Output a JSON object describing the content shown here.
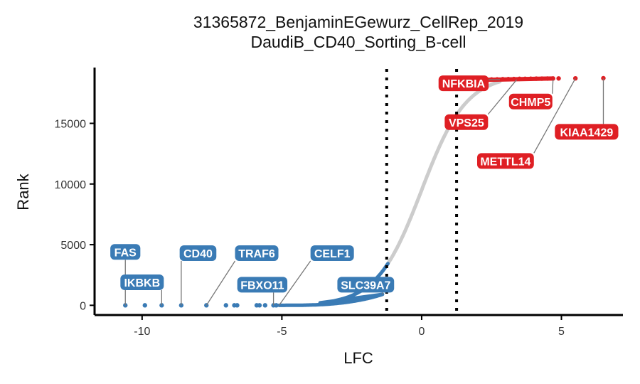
{
  "chart_data": {
    "type": "scatter",
    "title": [
      "31365872_BenjaminEGewurz_CellRep_2019",
      "DaudiB_CD40_Sorting_B-cell"
    ],
    "xlabel": "LFC",
    "ylabel": "Rank",
    "xlim": [
      -11.7,
      7.2
    ],
    "ylim": [
      -800,
      19600
    ],
    "x_ticks": [
      -10,
      -5,
      0,
      5
    ],
    "y_ticks": [
      0,
      5000,
      10000,
      15000
    ],
    "vlines": [
      -1.25,
      1.25
    ],
    "grid": false,
    "colors": {
      "negative": "#3a7bb5",
      "neutral": "#cccccc",
      "positive": "#df1f24"
    },
    "series": [
      {
        "points": [
          {
            "x": -10.6,
            "y": 0
          },
          {
            "x": -9.9,
            "y": 0
          },
          {
            "x": -9.3,
            "y": 0
          },
          {
            "x": -8.6,
            "y": 0
          },
          {
            "x": -7.7,
            "y": 0
          },
          {
            "x": -7.0,
            "y": 0
          },
          {
            "x": -6.7,
            "y": 0
          },
          {
            "x": -6.6,
            "y": 0
          },
          {
            "x": -5.9,
            "y": 0
          },
          {
            "x": -5.8,
            "y": 0
          },
          {
            "x": -5.6,
            "y": 0
          },
          {
            "x": -5.3,
            "y": 0
          },
          {
            "x": -5.2,
            "y": 0
          }
        ]
      },
      {
        "points": [
          {
            "x": 2.1,
            "y": 18600
          },
          {
            "x": 2.3,
            "y": 18610
          },
          {
            "x": 2.5,
            "y": 18620
          },
          {
            "x": 2.7,
            "y": 18630
          },
          {
            "x": 2.9,
            "y": 18640
          },
          {
            "x": 3.1,
            "y": 18650
          },
          {
            "x": 3.3,
            "y": 18660
          },
          {
            "x": 3.5,
            "y": 18670
          },
          {
            "x": 3.7,
            "y": 18675
          },
          {
            "x": 3.9,
            "y": 18680
          },
          {
            "x": 4.1,
            "y": 18685
          },
          {
            "x": 4.3,
            "y": 18690
          },
          {
            "x": 4.5,
            "y": 18695
          },
          {
            "x": 4.7,
            "y": 18700
          },
          {
            "x": 4.9,
            "y": 18705
          },
          {
            "x": 5.5,
            "y": 18710
          },
          {
            "x": 6.5,
            "y": 18720
          }
        ]
      }
    ],
    "annotations": [
      {
        "label": "FAS",
        "x": -10.6,
        "y": 0,
        "label_x": -10.6,
        "label_y": 4400,
        "group": "negative"
      },
      {
        "label": "IKBKB",
        "x": -9.3,
        "y": 0,
        "label_x": -10.0,
        "label_y": 1900,
        "group": "negative"
      },
      {
        "label": "CD40",
        "x": -8.6,
        "y": 0,
        "label_x": -8.0,
        "label_y": 4300,
        "group": "negative"
      },
      {
        "label": "TRAF6",
        "x": -7.7,
        "y": 0,
        "label_x": -5.9,
        "label_y": 4300,
        "group": "negative"
      },
      {
        "label": "FBXO11",
        "x": -5.3,
        "y": 0,
        "label_x": -5.7,
        "label_y": 1700,
        "group": "negative"
      },
      {
        "label": "CELF1",
        "x": -5.1,
        "y": 0,
        "label_x": -3.2,
        "label_y": 4300,
        "group": "negative"
      },
      {
        "label": "SLC39A7",
        "x": -1.4,
        "y": 900,
        "label_x": -2.0,
        "label_y": 1700,
        "group": "negative"
      },
      {
        "label": "NFKBIA",
        "x": 2.8,
        "y": 18600,
        "label_x": 1.5,
        "label_y": 18300,
        "group": "positive"
      },
      {
        "label": "VPS25",
        "x": 3.4,
        "y": 18600,
        "label_x": 1.6,
        "label_y": 15100,
        "group": "positive"
      },
      {
        "label": "CHMP5",
        "x": 4.7,
        "y": 18600,
        "label_x": 3.9,
        "label_y": 16800,
        "group": "positive"
      },
      {
        "label": "METTL14",
        "x": 5.5,
        "y": 18700,
        "label_x": 3.0,
        "label_y": 11900,
        "group": "positive"
      },
      {
        "label": "KIAA1429",
        "x": 6.5,
        "y": 18700,
        "label_x": 5.9,
        "label_y": 14300,
        "group": "positive"
      }
    ]
  }
}
